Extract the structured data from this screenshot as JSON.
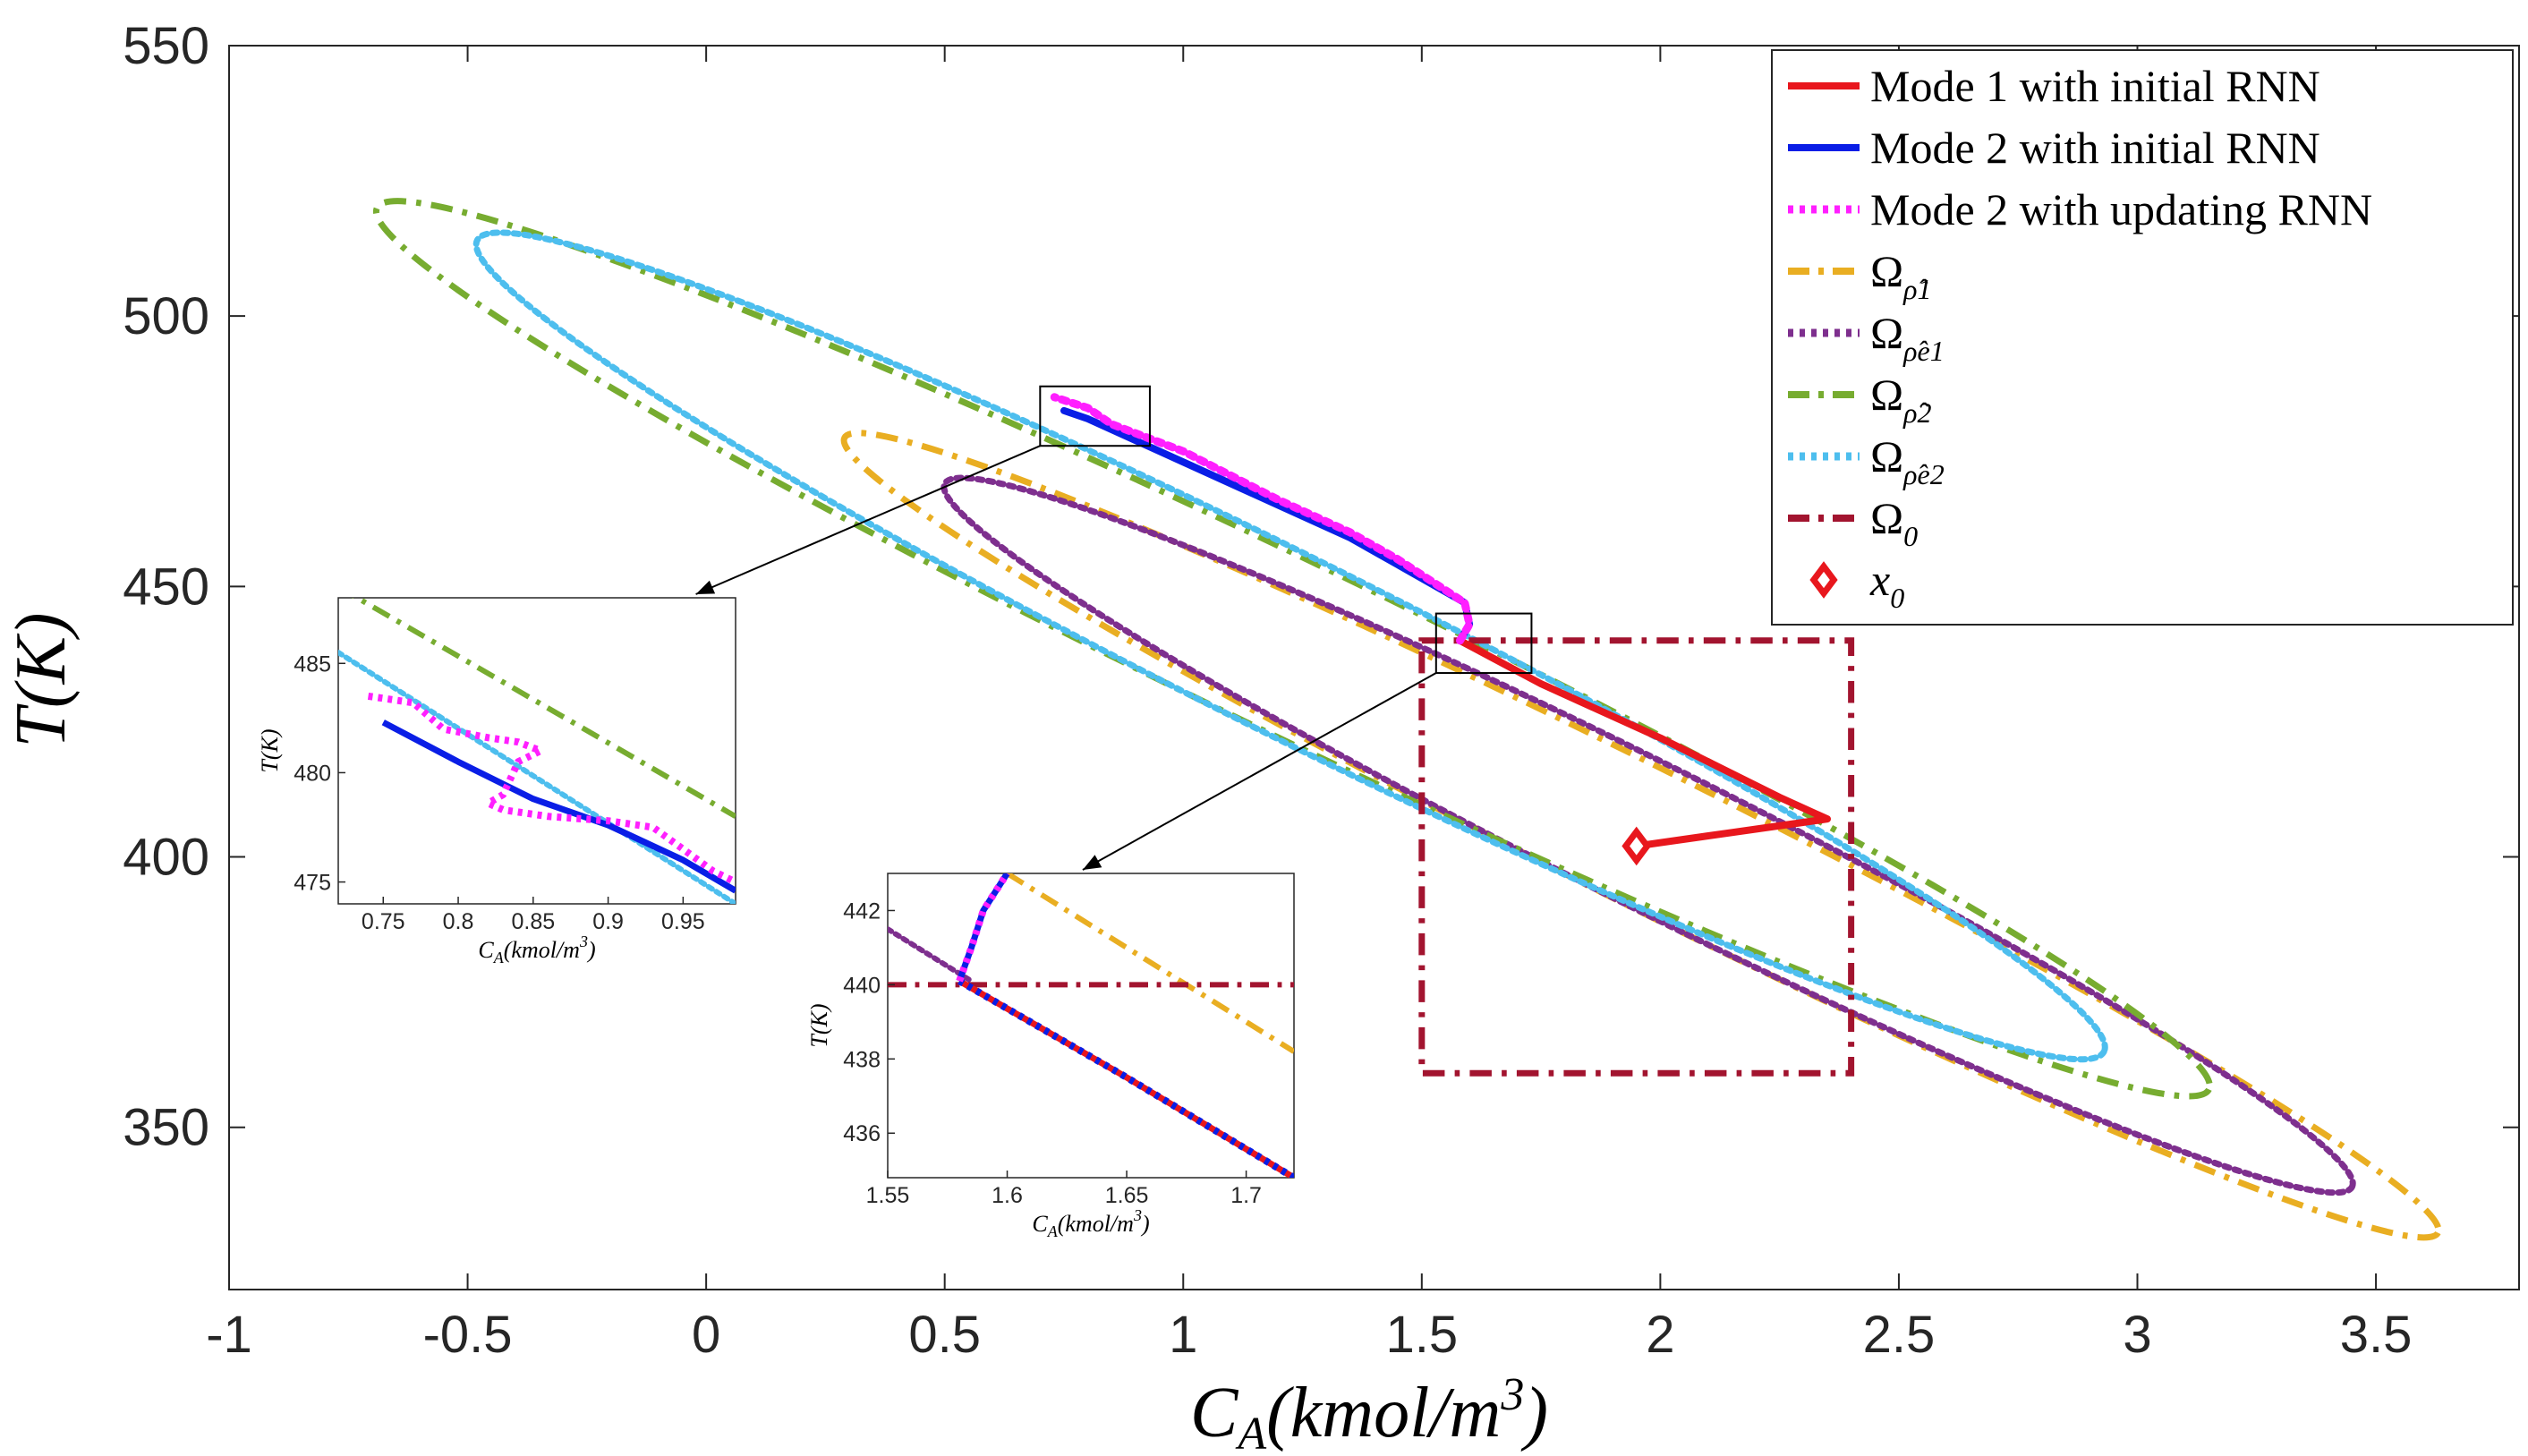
{
  "chart_data": {
    "type": "line",
    "title": "",
    "xlabel": "C_A(kmol/m^3)",
    "ylabel": "T(K)",
    "xlim": [
      -1,
      3.8
    ],
    "ylim": [
      320,
      550
    ],
    "xticks": [
      "-1",
      "-0.5",
      "0",
      "0.5",
      "1",
      "1.5",
      "2",
      "2.5",
      "3",
      "3.5"
    ],
    "yticks": [
      "350",
      "400",
      "450",
      "500",
      "550"
    ],
    "legend_position": "top-right",
    "legend": [
      {
        "label": "Mode 1 with initial RNN",
        "color": "#e8171d",
        "style": "solid"
      },
      {
        "label": "Mode 2 with initial RNN",
        "color": "#0a1ee6",
        "style": "solid"
      },
      {
        "label": "Mode 2 with updating RNN",
        "color": "#ff1fff",
        "style": "dotted"
      },
      {
        "label": "Ω",
        "sub": "ρ̂1",
        "color": "#e9ae22",
        "style": "dashdot"
      },
      {
        "label": "Ω",
        "sub": "ρ̂e1",
        "color": "#7e2f8e",
        "style": "dotted"
      },
      {
        "label": "Ω",
        "sub": "ρ̂2",
        "color": "#77ac30",
        "style": "dashdot"
      },
      {
        "label": "Ω",
        "sub": "ρ̂e2",
        "color": "#4dbeee",
        "style": "dotted"
      },
      {
        "label": "Ω",
        "sub": "0",
        "color": "#a2142f",
        "style": "dashdot"
      },
      {
        "label": "x",
        "sub": "0",
        "color": "#e8171d",
        "style": "marker"
      }
    ],
    "regions": [
      {
        "name": "omega-rho1",
        "type": "ellipse",
        "color": "#e9ae22",
        "style": "dashdot",
        "extent_points": [
          [
            0.29,
            477.5
          ],
          [
            3.63,
            330.5
          ],
          [
            3.56,
            328
          ],
          [
            0.29,
            475
          ]
        ]
      },
      {
        "name": "omega-rhoe1",
        "type": "ellipse",
        "color": "#7e2f8e",
        "style": "dotted",
        "extent_points": [
          [
            0.5,
            469
          ],
          [
            3.45,
            339
          ],
          [
            3.35,
            335.5
          ],
          [
            0.6,
            466
          ]
        ]
      },
      {
        "name": "omega-rho2",
        "type": "ellipse",
        "color": "#77ac30",
        "style": "dashdot",
        "extent_points": [
          [
            -0.69,
            520
          ],
          [
            3.15,
            357
          ],
          [
            3.08,
            353
          ],
          [
            -0.6,
            524.5
          ]
        ]
      },
      {
        "name": "omega-rhoe2",
        "type": "ellipse",
        "color": "#4dbeee",
        "style": "dotted",
        "extent_points": [
          [
            -0.48,
            514
          ],
          [
            2.93,
            364
          ],
          [
            2.75,
            360.5
          ],
          [
            -0.4,
            515.5
          ]
        ]
      },
      {
        "name": "omega-0",
        "type": "rectangle",
        "color": "#a2142f",
        "style": "dashdot",
        "x": [
          1.5,
          2.4
        ],
        "y": [
          360,
          440
        ]
      }
    ],
    "series": [
      {
        "name": "Mode 1 with initial RNN",
        "color": "#e8171d",
        "points": [
          [
            1.95,
            402
          ],
          [
            2.15,
            404.5
          ],
          [
            2.35,
            407
          ],
          [
            2.25,
            411
          ],
          [
            2.0,
            422
          ],
          [
            1.75,
            432
          ],
          [
            1.58,
            440
          ]
        ]
      },
      {
        "name": "Mode 2 with initial RNN",
        "color": "#0a1ee6",
        "points": [
          [
            1.58,
            440
          ],
          [
            1.6,
            443
          ],
          [
            1.59,
            447
          ],
          [
            1.45,
            454
          ],
          [
            1.35,
            459
          ],
          [
            1.2,
            465
          ],
          [
            1.0,
            473
          ],
          [
            0.8,
            481
          ],
          [
            0.75,
            482.5
          ]
        ]
      },
      {
        "name": "Mode 2 with updating RNN",
        "color": "#ff1fff",
        "points": [
          [
            1.58,
            440
          ],
          [
            1.6,
            443
          ],
          [
            1.59,
            447
          ],
          [
            1.45,
            455
          ],
          [
            1.35,
            460
          ],
          [
            1.2,
            466
          ],
          [
            1.0,
            475
          ],
          [
            0.85,
            480
          ],
          [
            0.8,
            483
          ],
          [
            0.73,
            485
          ]
        ]
      }
    ],
    "markers": [
      {
        "name": "x0",
        "x": 1.95,
        "y": 402,
        "color": "#e8171d",
        "shape": "diamond"
      }
    ],
    "insets": [
      {
        "name": "inset-top",
        "xlim": [
          0.72,
          0.985
        ],
        "ylim": [
          474,
          488
        ],
        "xticks": [
          "0.75",
          "0.8",
          "0.85",
          "0.9",
          "0.95"
        ],
        "yticks": [
          "475",
          "480",
          "485"
        ],
        "xlabel": "C_A(kmol/m^3)",
        "ylabel": "T(K)",
        "zoom_box": {
          "x": [
            0.7,
            0.93
          ],
          "y": [
            476,
            487
          ]
        }
      },
      {
        "name": "inset-bottom",
        "xlim": [
          1.55,
          1.72
        ],
        "ylim": [
          434.8,
          443
        ],
        "xticks": [
          "1.55",
          "1.6",
          "1.65",
          "1.7"
        ],
        "yticks": [
          "436",
          "438",
          "440",
          "442"
        ],
        "xlabel": "C_A(kmol/m^3)",
        "ylabel": "T(K)",
        "zoom_box": {
          "x": [
            1.53,
            1.73
          ],
          "y": [
            434,
            445
          ]
        }
      }
    ]
  }
}
